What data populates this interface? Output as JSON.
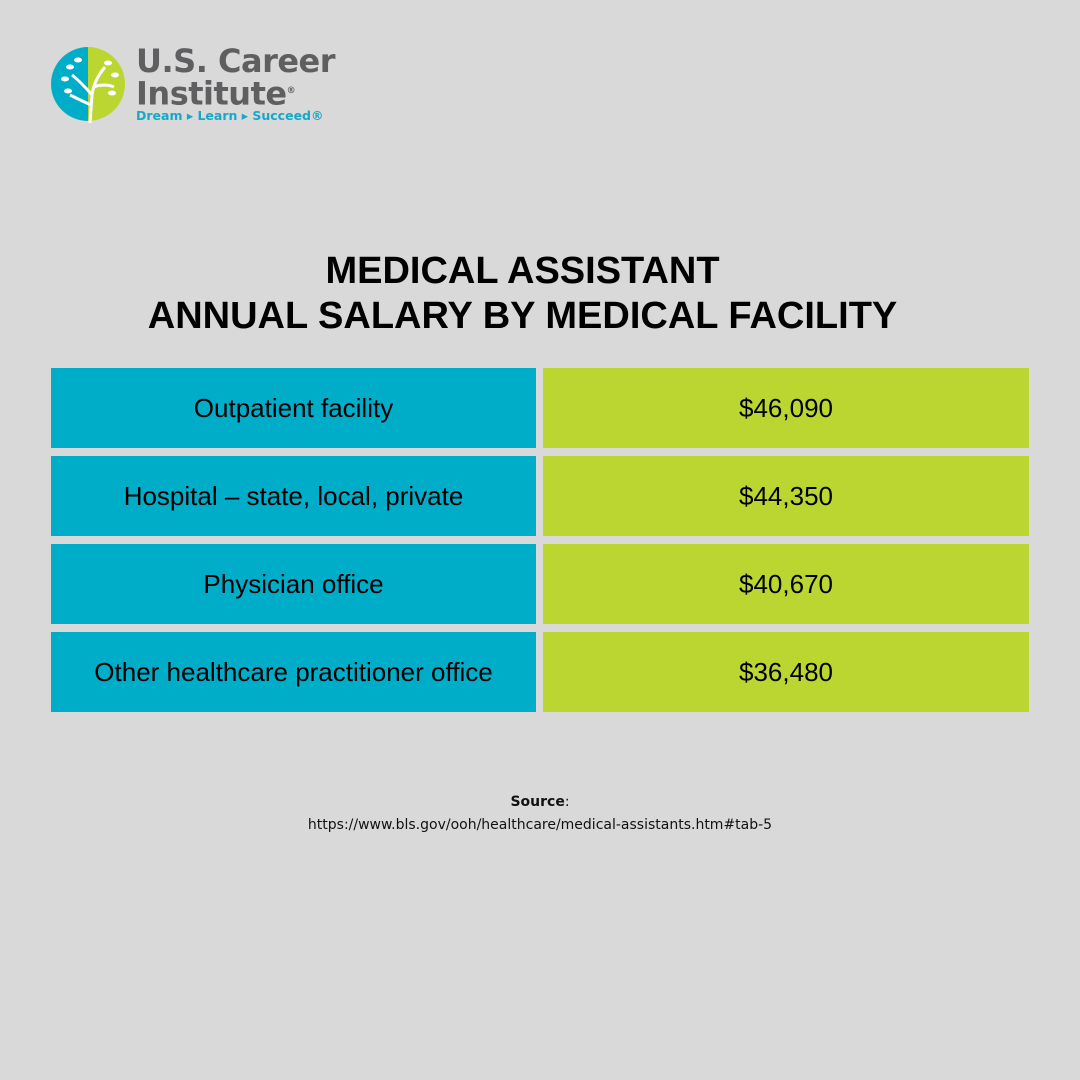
{
  "logo": {
    "line1": "U.S. Career",
    "line2": "Institute",
    "registered": "®",
    "tagline": "Dream ▸ Learn ▸ Succeed®",
    "colors": {
      "teal": "#00adc9",
      "lime": "#bcd631",
      "gray": "#5f5f61"
    }
  },
  "title": {
    "line1": "MEDICAL ASSISTANT",
    "line2": "ANNUAL SALARY BY MEDICAL FACILITY"
  },
  "table": {
    "rows": [
      {
        "facility": "Outpatient facility",
        "salary": "$46,090"
      },
      {
        "facility": "Hospital – state, local, private",
        "salary": "$44,350"
      },
      {
        "facility": "Physician office",
        "salary": "$40,670"
      },
      {
        "facility": "Other healthcare practitioner office",
        "salary": "$36,480"
      }
    ]
  },
  "source": {
    "label": "Source",
    "colon": ":",
    "url": "https://www.bls.gov/ooh/healthcare/medical-assistants.htm#tab-5"
  }
}
